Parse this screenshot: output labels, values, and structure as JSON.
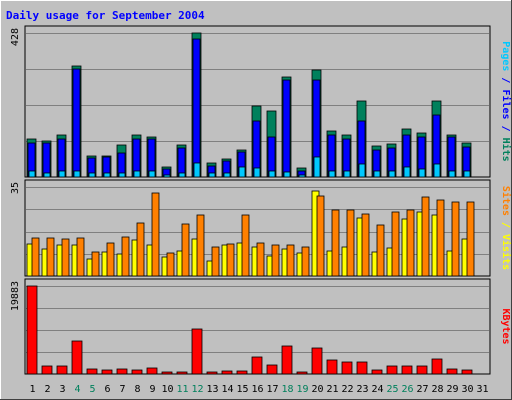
{
  "chart_data": {
    "type": "bar",
    "title": "Daily usage for September 2004",
    "categories": [
      "1",
      "2",
      "3",
      "4",
      "5",
      "6",
      "7",
      "8",
      "9",
      "10",
      "11",
      "12",
      "13",
      "14",
      "15",
      "16",
      "17",
      "18",
      "19",
      "20",
      "21",
      "22",
      "23",
      "24",
      "25",
      "26",
      "27",
      "28",
      "29",
      "30",
      "31"
    ],
    "weekend_days": [
      "4",
      "5",
      "11",
      "12",
      "18",
      "19",
      "25",
      "26"
    ],
    "panels": [
      {
        "id": "top",
        "max_label": "428",
        "ylim": [
          0,
          428
        ],
        "series": [
          {
            "name": "Hits",
            "color": "#00805c",
            "values": [
              113,
              107,
              124,
              330,
              63,
              63,
              95,
              124,
              119,
              30,
              95,
              428,
              41,
              53,
              79,
              212,
              196,
              298,
              26,
              318,
              137,
              124,
              225,
              92,
              98,
              142,
              130,
              225,
              124,
              100,
              0
            ]
          },
          {
            "name": "Files",
            "color": "#0000ff",
            "values": [
              101,
              101,
              113,
              321,
              57,
              60,
              71,
              113,
              113,
              24,
              86,
              411,
              33,
              47,
              74,
              166,
              119,
              287,
              18,
              287,
              125,
              113,
              166,
              80,
              86,
              124,
              119,
              184,
              119,
              90,
              0
            ]
          },
          {
            "name": "Pages",
            "color": "#00c8ff",
            "values": [
              18,
              12,
              18,
              18,
              12,
              12,
              12,
              18,
              18,
              6,
              12,
              41,
              12,
              12,
              30,
              27,
              18,
              15,
              6,
              60,
              18,
              18,
              38,
              18,
              18,
              30,
              24,
              38,
              18,
              18,
              0
            ]
          }
        ]
      },
      {
        "id": "middle",
        "max_label": "35",
        "ylim": [
          0,
          35
        ],
        "series": [
          {
            "name": "Visits",
            "color": "#ffff00",
            "values": [
              12.5,
              10.5,
              12,
              12,
              6.5,
              9.5,
              8.5,
              14,
              12,
              7.5,
              10,
              14.5,
              6,
              12,
              13,
              11.5,
              8,
              10.5,
              9,
              33.5,
              10,
              11.5,
              23,
              9.5,
              11,
              22.5,
              25,
              24,
              10,
              14.5,
              0
            ]
          },
          {
            "name": "Sites",
            "color": "#ff8000",
            "values": [
              15,
              15,
              14.5,
              15,
              9.5,
              13,
              15.5,
              21,
              32.5,
              9,
              20.5,
              24,
              11.5,
              12.5,
              24,
              13,
              12,
              12,
              11.5,
              31.5,
              26,
              26,
              24.5,
              20,
              25,
              26,
              31,
              30,
              29,
              29,
              0
            ]
          }
        ]
      },
      {
        "id": "bottom",
        "max_label": "19883",
        "ylim": [
          0,
          19883
        ],
        "series": [
          {
            "name": "KBytes",
            "color": "#ff0000",
            "values": [
              19883,
              1720,
              1825,
              7512,
              1200,
              812,
              1130,
              943,
              1420,
              440,
              560,
              10178,
              490,
              650,
              760,
              3780,
              2100,
              6420,
              420,
              5980,
              3210,
              2790,
              2810,
              1010,
              1760,
              1800,
              1830,
              3280,
              1100,
              950,
              0
            ]
          }
        ]
      }
    ],
    "right_labels": {
      "top": [
        {
          "text": "Pages",
          "color": "#00c8ff"
        },
        {
          "text": " / ",
          "color": "#0000ff"
        },
        {
          "text": "Files",
          "color": "#0000ff"
        },
        {
          "text": " / ",
          "color": "#0000ff"
        },
        {
          "text": "Hits",
          "color": "#00805c"
        }
      ],
      "middle": [
        {
          "text": "Sites",
          "color": "#ff8000"
        },
        {
          "text": " / ",
          "color": "#ffff00"
        },
        {
          "text": "Visits",
          "color": "#ffff00"
        }
      ],
      "bottom": [
        {
          "text": "KBytes",
          "color": "#ff0000"
        }
      ]
    },
    "colors": {
      "background": "#c0c0c0",
      "plot_background": "#c0c0c0",
      "grid": "#808080",
      "title": "#0000ff",
      "weekday_label": "#000000",
      "weekend_label": "#00805c"
    },
    "grid": true,
    "legend": "right-side-vertical"
  }
}
